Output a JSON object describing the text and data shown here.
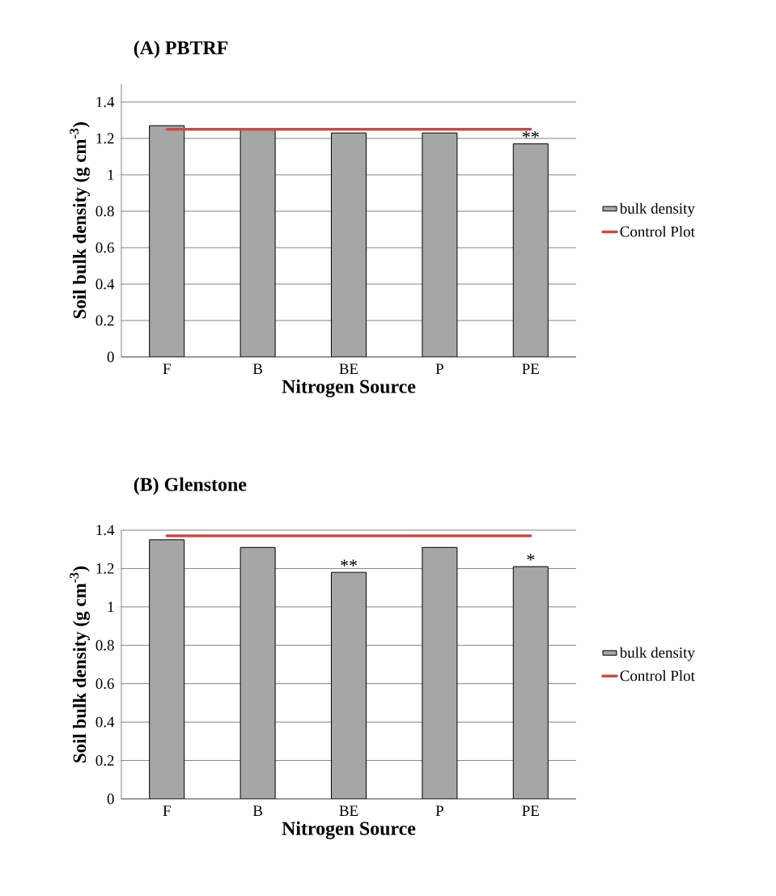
{
  "chart_data": [
    {
      "type": "bar",
      "title": "(A) PBTRF",
      "xlabel": "Nitrogen Source",
      "ylabel": "Soil bulk density (g cm$^{-3}$)",
      "categories": [
        "F",
        "B",
        "BE",
        "P",
        "PE"
      ],
      "series": [
        {
          "name": "bulk density",
          "color": "#a6a6a6",
          "values": [
            1.27,
            1.25,
            1.23,
            1.23,
            1.17
          ]
        },
        {
          "name": "Control Plot",
          "type": "line",
          "color": "#c0504d",
          "values": [
            1.25,
            1.25,
            1.25,
            1.25,
            1.25
          ]
        }
      ],
      "ylim": [
        0,
        1.5
      ],
      "yticks": [
        0,
        0.2,
        0.4,
        0.6,
        0.8,
        1,
        1.2,
        1.4
      ],
      "grid": "y",
      "legend": "right",
      "annotations": [
        {
          "text": "**",
          "x": "PE",
          "y": 1.17
        }
      ]
    },
    {
      "type": "bar",
      "title": "(B) Glenstone",
      "xlabel": "Nitrogen Source",
      "ylabel": "Soil bulk density (g cm$^{-3}$)",
      "categories": [
        "F",
        "B",
        "BE",
        "P",
        "PE"
      ],
      "series": [
        {
          "name": "bulk density",
          "color": "#a6a6a6",
          "values": [
            1.35,
            1.31,
            1.18,
            1.31,
            1.21
          ]
        },
        {
          "name": "Control Plot",
          "type": "line",
          "color": "#c0504d",
          "values": [
            1.37,
            1.37,
            1.37,
            1.37,
            1.37
          ]
        }
      ],
      "ylim": [
        0,
        1.4
      ],
      "yticks": [
        0,
        0.2,
        0.4,
        0.6,
        0.8,
        1,
        1.2,
        1.4
      ],
      "grid": "y",
      "legend": "right",
      "annotations": [
        {
          "text": "**",
          "x": "BE",
          "y": 1.18
        },
        {
          "text": "*",
          "x": "PE",
          "y": 1.21
        }
      ]
    }
  ]
}
